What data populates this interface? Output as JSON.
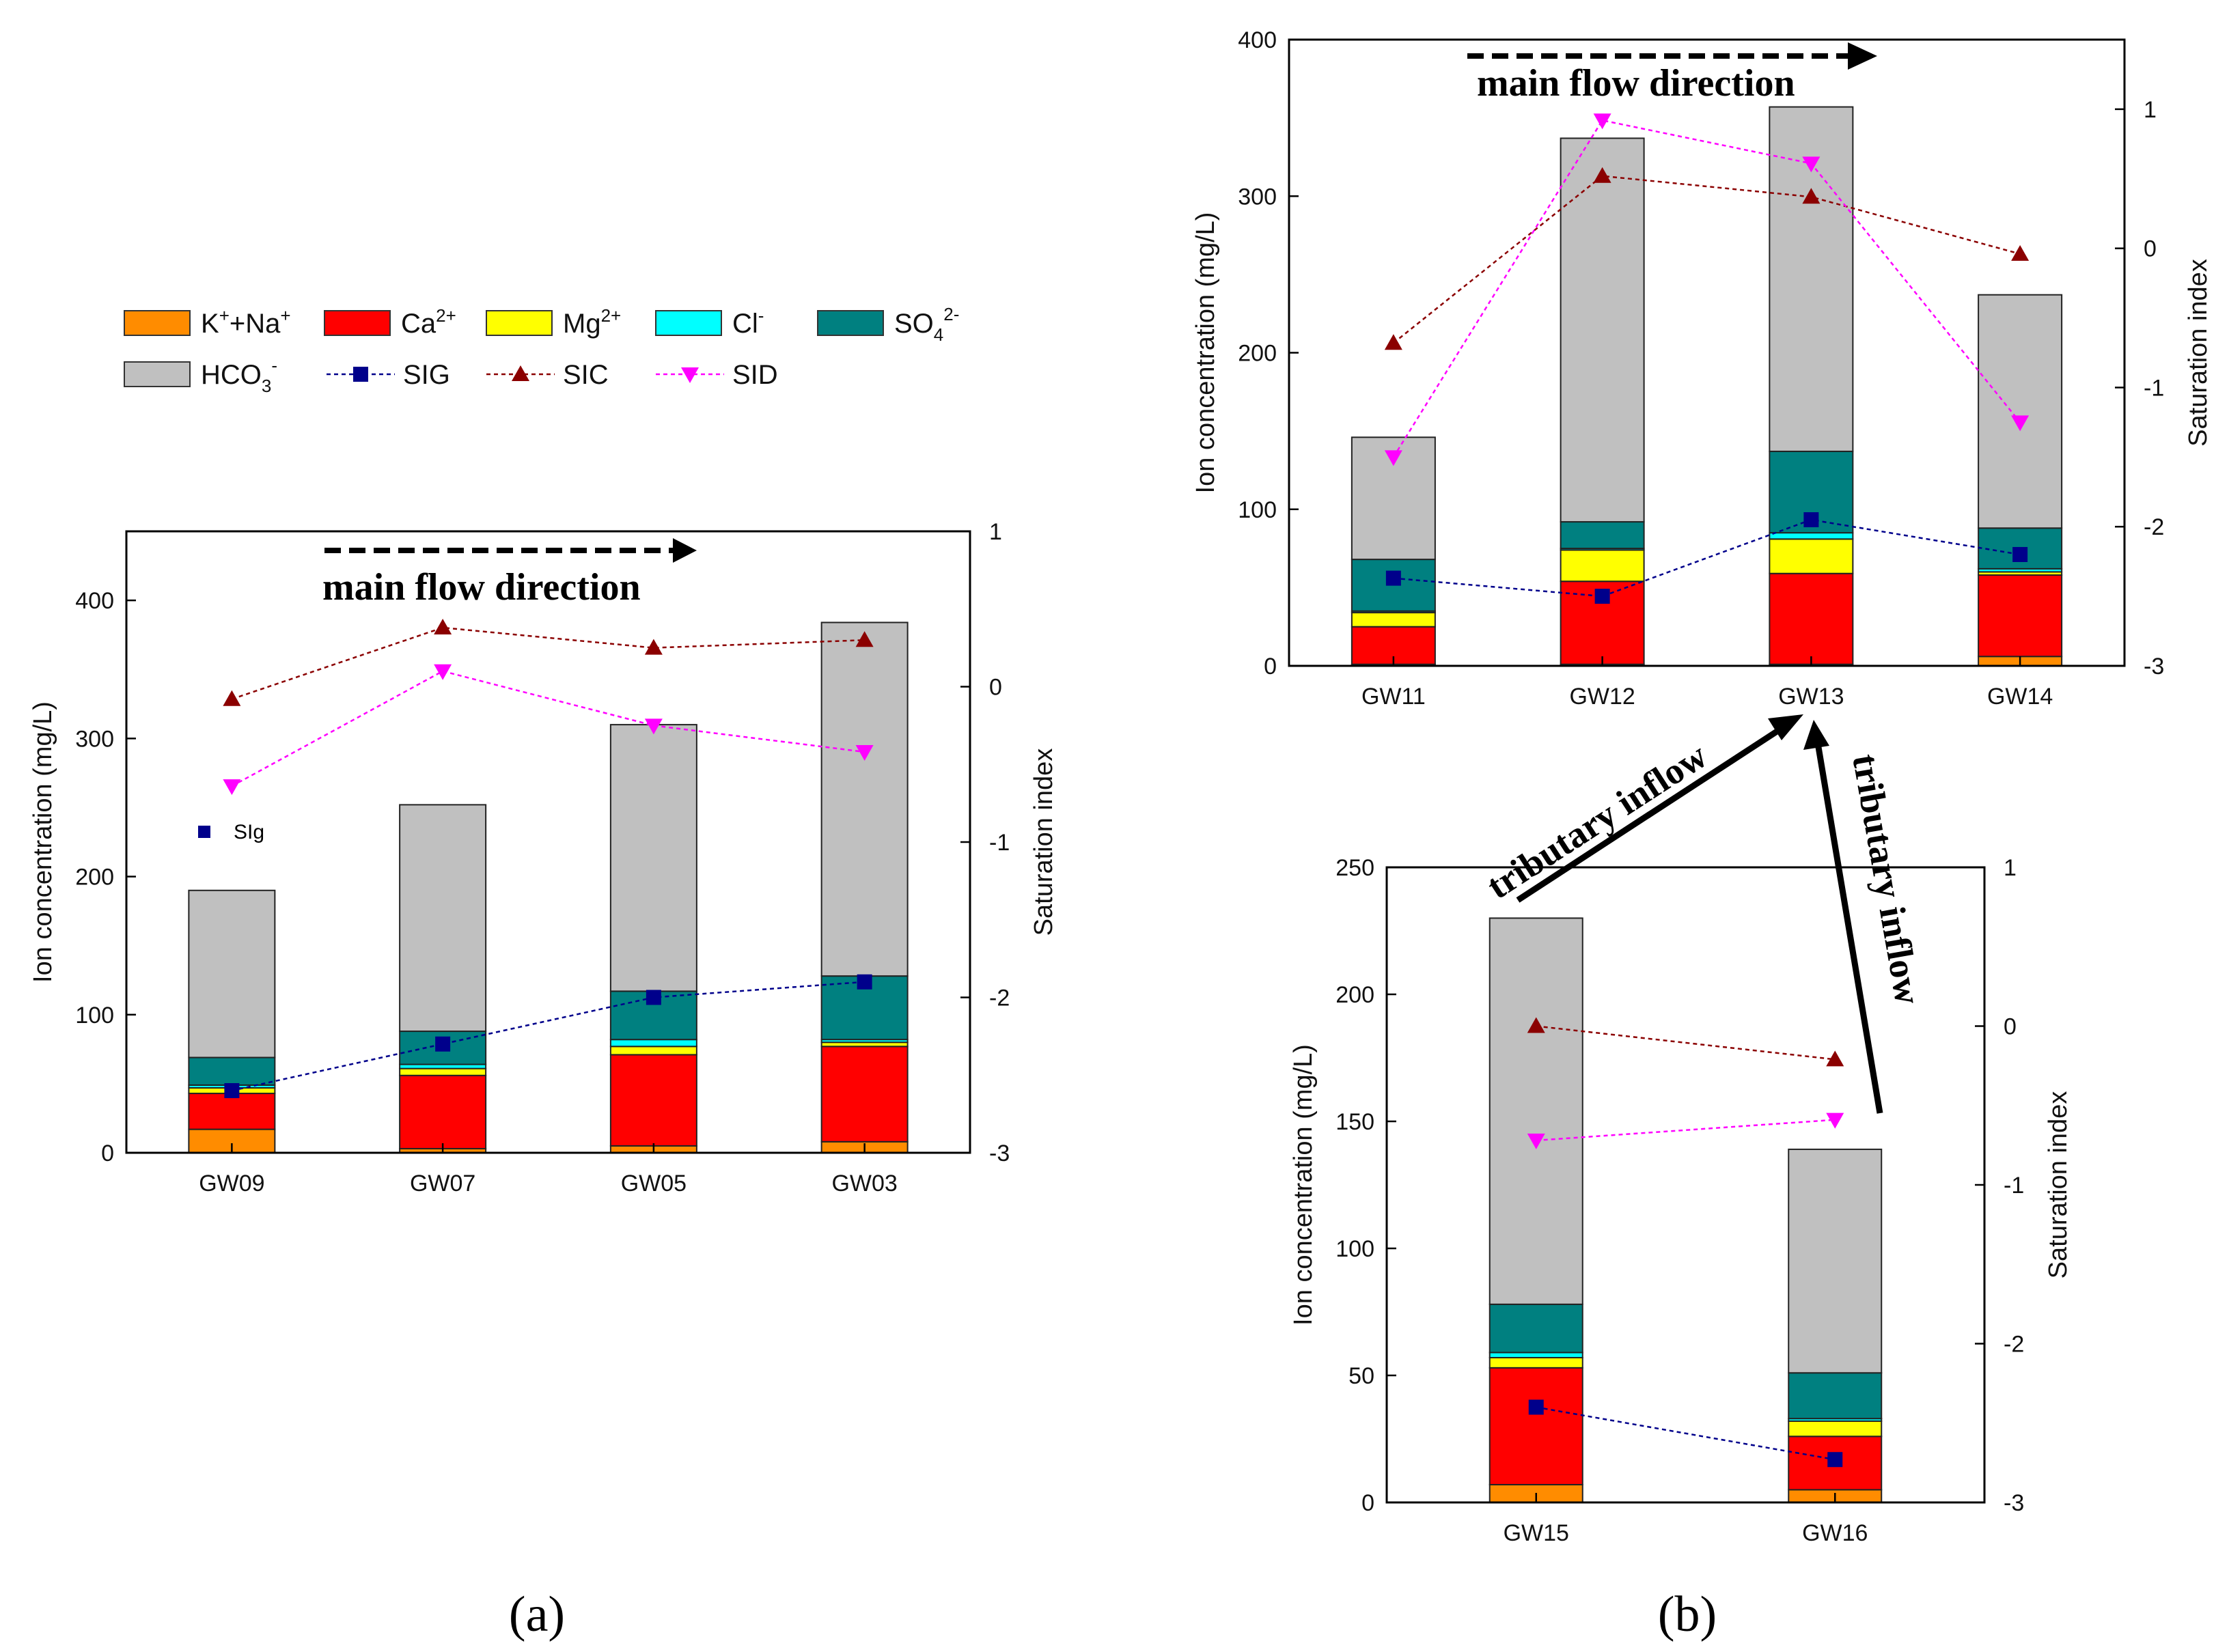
{
  "legend": {
    "items": [
      {
        "key": "kna",
        "kind": "box",
        "color": "#FF8C00",
        "base": "K",
        "sup1": "+",
        "mid": "+Na",
        "sup2": "+"
      },
      {
        "key": "ca",
        "kind": "box",
        "color": "#FF0000",
        "base": "Ca",
        "sup2": "2+"
      },
      {
        "key": "mg",
        "kind": "box",
        "color": "#FFFF00",
        "base": "Mg",
        "sup2": "2+"
      },
      {
        "key": "cl",
        "kind": "box",
        "color": "#00FFFF",
        "base": "Cl",
        "sup2": "-"
      },
      {
        "key": "so4",
        "kind": "box",
        "color": "#008080",
        "base": "SO",
        "sub": "4",
        "sup2": "2-"
      },
      {
        "key": "hco3",
        "kind": "box",
        "color": "#C0C0C0",
        "base": "HCO",
        "sub": "3",
        "sup2": "-"
      },
      {
        "key": "sig",
        "kind": "line",
        "color": "#00008B",
        "marker": "square",
        "label": "SIG"
      },
      {
        "key": "sic",
        "kind": "line",
        "color": "#8B0000",
        "marker": "triangle",
        "label": "SIC"
      },
      {
        "key": "sid",
        "kind": "line",
        "color": "#FF00FF",
        "marker": "triangle-down",
        "label": "SID"
      }
    ]
  },
  "annotations": {
    "main_flow": "main flow direction",
    "tributary": "tributary inflow",
    "sig_label": "SIg",
    "panel_a": "(a)",
    "panel_b": "(b)"
  },
  "chart_data": [
    {
      "id": "a",
      "type": "bar",
      "stacked": true,
      "categories": [
        "GW09",
        "GW07",
        "GW05",
        "GW03"
      ],
      "ylabel": "Ion concentration (mg/L)",
      "y2label": "Saturation index",
      "ylim": [
        0,
        450
      ],
      "yticks": [
        0,
        100,
        200,
        300,
        400
      ],
      "y2lim": [
        -3,
        1
      ],
      "y2ticks": [
        -3,
        -2,
        -1,
        0,
        1
      ],
      "stacks": [
        {
          "key": "kna",
          "values": [
            17,
            3,
            5,
            8
          ]
        },
        {
          "key": "ca",
          "values": [
            26,
            53,
            66,
            69
          ]
        },
        {
          "key": "mg",
          "values": [
            4,
            5,
            6,
            3
          ]
        },
        {
          "key": "cl",
          "values": [
            2,
            3,
            5,
            2
          ]
        },
        {
          "key": "so4",
          "values": [
            20,
            24,
            35,
            46
          ]
        },
        {
          "key": "hco3",
          "values": [
            121,
            164,
            193,
            256
          ]
        }
      ],
      "lines": [
        {
          "key": "sig",
          "values": [
            -2.6,
            -2.3,
            -2.0,
            -1.9
          ]
        },
        {
          "key": "sic",
          "values": [
            -0.08,
            0.38,
            0.25,
            0.3
          ]
        },
        {
          "key": "sid",
          "values": [
            -0.64,
            0.1,
            -0.25,
            -0.42
          ]
        }
      ]
    },
    {
      "id": "b1",
      "type": "bar",
      "stacked": true,
      "categories": [
        "GW11",
        "GW12",
        "GW13",
        "GW14"
      ],
      "ylabel": "Ion concentration (mg/L)",
      "y2label": "Saturation index",
      "ylim": [
        0,
        400
      ],
      "yticks": [
        0,
        100,
        200,
        300,
        400
      ],
      "y2lim": [
        -3,
        1.5
      ],
      "y2ticks": [
        -3,
        -2,
        -1,
        0,
        1
      ],
      "stacks": [
        {
          "key": "kna",
          "values": [
            1,
            1,
            1,
            6
          ]
        },
        {
          "key": "ca",
          "values": [
            24,
            53,
            58,
            52
          ]
        },
        {
          "key": "mg",
          "values": [
            9,
            20,
            22,
            2
          ]
        },
        {
          "key": "cl",
          "values": [
            1,
            1,
            4,
            2
          ]
        },
        {
          "key": "so4",
          "values": [
            33,
            17,
            52,
            26
          ]
        },
        {
          "key": "hco3",
          "values": [
            78,
            245,
            220,
            149
          ]
        }
      ],
      "lines": [
        {
          "key": "sig",
          "values": [
            -2.37,
            -2.5,
            -1.95,
            -2.2
          ]
        },
        {
          "key": "sic",
          "values": [
            -0.68,
            0.52,
            0.37,
            -0.04
          ]
        },
        {
          "key": "sid",
          "values": [
            -1.5,
            0.92,
            0.61,
            -1.25
          ]
        }
      ]
    },
    {
      "id": "b2",
      "type": "bar",
      "stacked": true,
      "categories": [
        "GW15",
        "GW16"
      ],
      "ylabel": "Ion concentration (mg/L)",
      "y2label": "Saturation index",
      "ylim": [
        0,
        250
      ],
      "yticks": [
        0,
        50,
        100,
        150,
        200,
        250
      ],
      "y2lim": [
        -3,
        1
      ],
      "y2ticks": [
        -3,
        -2,
        -1,
        0,
        1
      ],
      "stacks": [
        {
          "key": "kna",
          "values": [
            7,
            5
          ]
        },
        {
          "key": "ca",
          "values": [
            46,
            21
          ]
        },
        {
          "key": "mg",
          "values": [
            4,
            6
          ]
        },
        {
          "key": "cl",
          "values": [
            2,
            1
          ]
        },
        {
          "key": "so4",
          "values": [
            19,
            18
          ]
        },
        {
          "key": "hco3",
          "values": [
            152,
            88
          ]
        }
      ],
      "lines": [
        {
          "key": "sig",
          "values": [
            -2.4,
            -2.73
          ]
        },
        {
          "key": "sic",
          "values": [
            0,
            -0.21
          ]
        },
        {
          "key": "sid",
          "values": [
            -0.72,
            -0.59
          ]
        }
      ]
    }
  ]
}
